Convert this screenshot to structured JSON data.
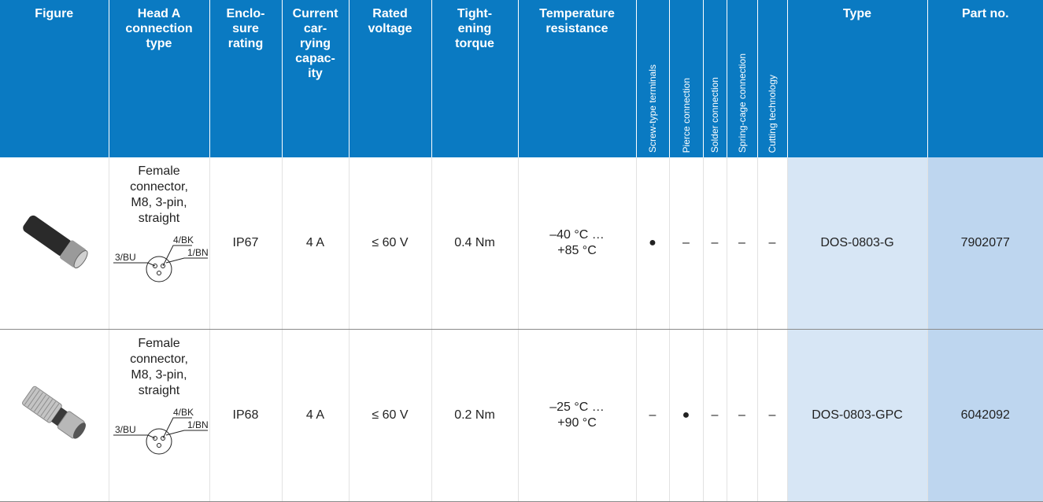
{
  "table": {
    "header": [
      "Figure",
      "Head A\nconnection\ntype",
      "Enclo-\nsure\nrating",
      "Current\ncar-\nrying\ncapac-\nity",
      "Rated\nvoltage",
      "Tight-\nening\ntorque",
      "Temperature\nresistance",
      "Screw-type terminals",
      "Pierce connection",
      "Solder connection",
      "Spring-cage connection",
      "Cutting technology",
      "Type",
      "Part no."
    ],
    "rows": [
      {
        "description": "Female\nconnector,\nM8, 3-pin,\nstraight",
        "pins": [
          "4/BK",
          "1/BN",
          "3/BU"
        ],
        "cells": [
          "IP67",
          "4 A",
          "≤ 60 V",
          "0.4 Nm",
          "–40 °C …\n+85 °C",
          "●",
          "–",
          "–",
          "–",
          "–",
          "DOS-0803-G",
          "7902077"
        ]
      },
      {
        "description": "Female\nconnector,\nM8, 3-pin,\nstraight",
        "pins": [
          "4/BK",
          "1/BN",
          "3/BU"
        ],
        "cells": [
          "IP68",
          "4 A",
          "≤ 60 V",
          "0.2 Nm",
          "–25 °C …\n+90 °C",
          "–",
          "●",
          "–",
          "–",
          "–",
          "DOS-0803-GPC",
          "6042092"
        ]
      }
    ]
  }
}
